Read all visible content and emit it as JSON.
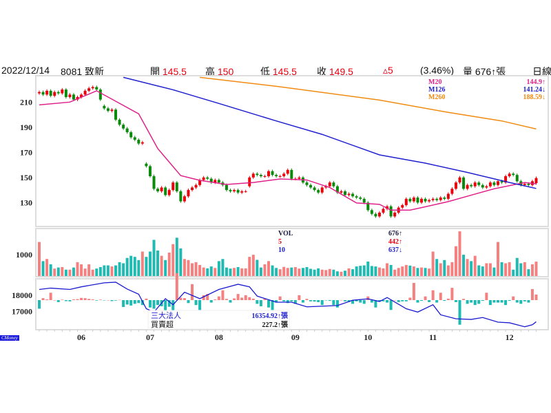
{
  "header": {
    "date": "2022/12/14",
    "stock": "8081 致新",
    "open_label": "開",
    "open": "145.5",
    "high_label": "高",
    "high": "150",
    "low_label": "低",
    "low": "145.5",
    "close_label": "收",
    "close": "149.5",
    "change": "▵5",
    "change_pct": "(3.46%)",
    "volume_label": "量",
    "volume": "676↑張",
    "period": "日線"
  },
  "ma_legend": [
    {
      "name": "M20",
      "value": "144.9↑",
      "color": "#e0208a"
    },
    {
      "name": "M126",
      "value": "141.24↓",
      "color": "#2020d0"
    },
    {
      "name": "M260",
      "value": "188.59↓",
      "color": "#f08a10"
    }
  ],
  "vol_legend": [
    {
      "name": "VOL",
      "value": "676↑",
      "color": "#1a1a40"
    },
    {
      "name": "5",
      "value": "442↑",
      "color": "#e60012"
    },
    {
      "name": "10",
      "value": "637↓",
      "color": "#2020d0"
    }
  ],
  "inst_legend": [
    {
      "name": "三大法人",
      "value": "16354.92↑張",
      "color": "#2020d0"
    },
    {
      "name": "買賣超",
      "value": "227.2↑張",
      "color": "#111111"
    }
  ],
  "logo": "CMoney",
  "colors": {
    "up": "#e8000b",
    "down": "#0a8a0a",
    "vol_up": "#f48080",
    "vol_down": "#1fbab2",
    "holdings": "#1a1ad0"
  },
  "chart_data": {
    "type": "candlestick",
    "x_ticks": [
      {
        "label": "06",
        "index": 11
      },
      {
        "label": "07",
        "index": 29
      },
      {
        "label": "08",
        "index": 47
      },
      {
        "label": "09",
        "index": 67
      },
      {
        "label": "10",
        "index": 86
      },
      {
        "label": "11",
        "index": 103
      },
      {
        "label": "12",
        "index": 123
      }
    ],
    "price": {
      "ylim": [
        111,
        231
      ],
      "y_ticks": [
        130,
        150,
        170,
        190,
        210
      ],
      "open": [
        217,
        218,
        216,
        219,
        215,
        218,
        217,
        220,
        214,
        216,
        212,
        214,
        216,
        219,
        221,
        222,
        220,
        207,
        205,
        203,
        204,
        196,
        192,
        189,
        186,
        182,
        180,
        177,
        161,
        159,
        151,
        141,
        139,
        142,
        136,
        140,
        146,
        139,
        131,
        135,
        140,
        142,
        144,
        148,
        150,
        149,
        146,
        148,
        146,
        144,
        140,
        139,
        140,
        138,
        139,
        143,
        150,
        153,
        152,
        151,
        151,
        155,
        152,
        151,
        151,
        153,
        156,
        149,
        149,
        150,
        146,
        144,
        142,
        140,
        138,
        142,
        143,
        146,
        143,
        138,
        139,
        136,
        137,
        135,
        134,
        133,
        130,
        124,
        121,
        119,
        122,
        125,
        127,
        119,
        122,
        126,
        128,
        133,
        131,
        134,
        130,
        133,
        131,
        132,
        133,
        132,
        134,
        133,
        137,
        141,
        146,
        150,
        141,
        144,
        143,
        146,
        144,
        142,
        143,
        146,
        144,
        147,
        146,
        151,
        153,
        152,
        147,
        144,
        145,
        144,
        145.5
      ],
      "close": [
        218,
        216,
        219,
        215,
        218,
        217,
        220,
        214,
        216,
        212,
        214,
        216,
        219,
        221,
        222,
        220,
        212,
        205,
        203,
        204,
        196,
        192,
        189,
        186,
        182,
        180,
        177,
        178,
        159,
        151,
        141,
        139,
        142,
        136,
        140,
        146,
        139,
        131,
        135,
        140,
        142,
        144,
        148,
        150,
        149,
        146,
        148,
        146,
        144,
        140,
        139,
        140,
        138,
        139,
        139,
        150,
        153,
        152,
        151,
        151,
        155,
        152,
        151,
        151,
        153,
        156,
        149,
        149,
        150,
        146,
        144,
        142,
        140,
        138,
        142,
        143,
        146,
        143,
        138,
        139,
        136,
        137,
        135,
        134,
        133,
        130,
        124,
        121,
        119,
        122,
        125,
        127,
        119,
        122,
        126,
        128,
        133,
        131,
        134,
        130,
        133,
        131,
        132,
        133,
        132,
        134,
        133,
        137,
        141,
        146,
        150,
        141,
        144,
        143,
        146,
        144,
        142,
        143,
        146,
        144,
        147,
        146,
        151,
        153,
        152,
        147,
        144,
        145,
        144,
        147,
        149.5
      ],
      "ma": [
        {
          "name": "M20",
          "points": [
            [
              0,
              207.8
            ],
            [
              8,
              210
            ],
            [
              15,
              219
            ],
            [
              26,
              200.7
            ],
            [
              31,
              173
            ],
            [
              37,
              151.5
            ],
            [
              42,
              147.7
            ],
            [
              49,
              144.4
            ],
            [
              56,
              146
            ],
            [
              63,
              148.8
            ],
            [
              70,
              148
            ],
            [
              76,
              142
            ],
            [
              83,
              129.7
            ],
            [
              89,
              128.6
            ],
            [
              92,
              124
            ],
            [
              97,
              124
            ],
            [
              100,
              126
            ],
            [
              107,
              130.8
            ],
            [
              114,
              136.8
            ],
            [
              119,
              141
            ],
            [
              127,
              146
            ],
            [
              130,
              144.9
            ]
          ]
        },
        {
          "name": "M126",
          "points": [
            [
              22,
              229.7
            ],
            [
              35,
              219.8
            ],
            [
              47,
              208.9
            ],
            [
              62,
              195
            ],
            [
              74,
              184.3
            ],
            [
              89,
              168
            ],
            [
              101,
              161.4
            ],
            [
              112,
              154
            ],
            [
              123,
              146
            ],
            [
              130,
              141.24
            ]
          ]
        },
        {
          "name": "M260",
          "points": [
            [
              42,
              229.7
            ],
            [
              62,
              222.6
            ],
            [
              89,
              211.6
            ],
            [
              107,
              201.8
            ],
            [
              121,
              195
            ],
            [
              130,
              188.59
            ]
          ]
        }
      ]
    },
    "volume": {
      "ylim": [
        0,
        2200
      ],
      "y_ticks": [
        1000
      ],
      "values": [
        1600,
        700,
        800,
        550,
        350,
        400,
        420,
        300,
        300,
        400,
        650,
        550,
        350,
        550,
        300,
        350,
        420,
        500,
        500,
        450,
        500,
        650,
        600,
        850,
        950,
        900,
        750,
        1150,
        900,
        1150,
        1700,
        1200,
        950,
        750,
        1100,
        1500,
        1800,
        1300,
        800,
        750,
        600,
        650,
        520,
        400,
        360,
        450,
        380,
        700,
        800,
        400,
        350,
        380,
        420,
        360,
        360,
        900,
        1000,
        760,
        400,
        550,
        700,
        500,
        380,
        320,
        430,
        380,
        400,
        420,
        350,
        380,
        420,
        340,
        300,
        360,
        300,
        280,
        330,
        300,
        220,
        200,
        250,
        360,
        320,
        450,
        480,
        500,
        680,
        470,
        450,
        400,
        360,
        600,
        520,
        300,
        380,
        450,
        520,
        490,
        450,
        380,
        400,
        380,
        350,
        1150,
        800,
        600,
        750,
        500,
        650,
        1400,
        2100,
        1000,
        800,
        700,
        950,
        500,
        450,
        600,
        600,
        400,
        1600,
        650,
        600,
        650,
        300,
        850,
        600,
        650,
        320,
        550,
        676
      ]
    },
    "institutional": {
      "holdings_ylim": [
        15900,
        19000
      ],
      "y_ticks": [
        17000,
        18000
      ],
      "holdings": [
        [
          0,
          18375
        ],
        [
          3,
          18460
        ],
        [
          8,
          18375
        ],
        [
          11,
          18540
        ],
        [
          17,
          18790
        ],
        [
          20,
          18830
        ],
        [
          23,
          18400
        ],
        [
          26,
          18080
        ],
        [
          28,
          17170
        ],
        [
          30,
          16960
        ],
        [
          33,
          17800
        ],
        [
          35,
          17420
        ],
        [
          38,
          18200
        ],
        [
          42,
          17800
        ],
        [
          47,
          18375
        ],
        [
          52,
          18700
        ],
        [
          55,
          18540
        ],
        [
          57,
          17960
        ],
        [
          62,
          17580
        ],
        [
          66,
          17580
        ],
        [
          70,
          17290
        ],
        [
          78,
          17370
        ],
        [
          82,
          17700
        ],
        [
          86,
          17790
        ],
        [
          89,
          17620
        ],
        [
          91,
          17870
        ],
        [
          96,
          17170
        ],
        [
          99,
          16960
        ],
        [
          103,
          17420
        ],
        [
          105,
          16790
        ],
        [
          109,
          16540
        ],
        [
          113,
          16500
        ],
        [
          116,
          16620
        ],
        [
          120,
          16330
        ],
        [
          123,
          16290
        ],
        [
          127,
          16040
        ],
        [
          129,
          16170
        ],
        [
          130,
          16354.92
        ]
      ],
      "net_buy_sell": [
        -350,
        80,
        30,
        300,
        0,
        -80,
        20,
        -40,
        -50,
        30,
        40,
        90,
        80,
        50,
        30,
        -20,
        20,
        -10,
        0,
        -40,
        -20,
        10,
        -280,
        -180,
        -220,
        -150,
        -120,
        -200,
        60,
        -300,
        -350,
        -200,
        -250,
        -450,
        -270,
        -550,
        1100,
        100,
        80,
        -120,
        650,
        -200,
        -400,
        200,
        250,
        -100,
        30,
        150,
        400,
        50,
        -100,
        70,
        250,
        100,
        200,
        120,
        60,
        -150,
        -250,
        50,
        -300,
        -400,
        -100,
        150,
        -50,
        -120,
        -50,
        -150,
        200,
        -100,
        50,
        -50,
        -60,
        -80,
        -200,
        -10,
        -30,
        -200,
        -300,
        0,
        -50,
        -80,
        -150,
        -50,
        -100,
        -150,
        150,
        -100,
        -300,
        -60,
        -50,
        -100,
        -400,
        0,
        -80,
        -50,
        -50,
        100,
        700,
        -100,
        -30,
        150,
        -80,
        400,
        -100,
        300,
        -30,
        60,
        500,
        -80,
        -1000,
        50,
        -150,
        -100,
        -200,
        -150,
        -30,
        300,
        -200,
        -100,
        -100,
        -100,
        -200,
        -30,
        150,
        -100,
        -150,
        -50,
        -100,
        450,
        227.2
      ]
    }
  }
}
